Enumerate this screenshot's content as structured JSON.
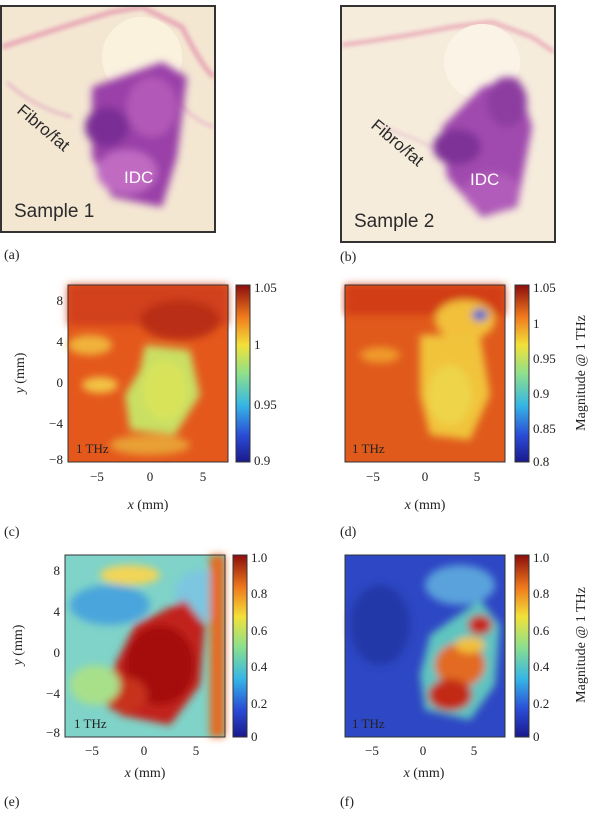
{
  "panels": {
    "a": {
      "letter": "(a)",
      "sample": "Sample 1",
      "label1": "Fibro/fat",
      "label2": "IDC"
    },
    "b": {
      "letter": "(b)",
      "sample": "Sample 2",
      "label1": "Fibro/fat",
      "label2": "IDC"
    },
    "c": {
      "letter": "(c)"
    },
    "d": {
      "letter": "(d)"
    },
    "e": {
      "letter": "(e)"
    },
    "f": {
      "letter": "(f)"
    }
  },
  "chart_data": [
    {
      "id": "c",
      "type": "heatmap",
      "inset": "1 THz",
      "xlabel_var": "x",
      "xlabel_unit": " (mm)",
      "ylabel_var": "y",
      "ylabel_unit": " (mm)",
      "xticks": [
        "−5",
        "0",
        "5"
      ],
      "yticks": [
        "8",
        "4",
        "0",
        "−4",
        "−8"
      ],
      "colorbar": {
        "ticks": [
          "1.05",
          "1",
          "0.95",
          "0.9"
        ],
        "range": [
          0.9,
          1.05
        ],
        "label": ""
      }
    },
    {
      "id": "d",
      "type": "heatmap",
      "inset": "1 THz",
      "xlabel_var": "x",
      "xlabel_unit": " (mm)",
      "xticks": [
        "−5",
        "0",
        "5"
      ],
      "colorbar": {
        "ticks": [
          "1.05",
          "1",
          "0.95",
          "0.9",
          "0.85",
          "0.8"
        ],
        "range": [
          0.8,
          1.05
        ],
        "label": "Magnitude @ 1 THz"
      }
    },
    {
      "id": "e",
      "type": "heatmap",
      "inset": "1 THz",
      "xlabel_var": "x",
      "xlabel_unit": " (mm)",
      "ylabel_var": "y",
      "ylabel_unit": " (mm)",
      "xticks": [
        "−5",
        "0",
        "5"
      ],
      "yticks": [
        "8",
        "4",
        "0",
        "−4",
        "−8"
      ],
      "colorbar": {
        "ticks": [
          "1.0",
          "0.8",
          "0.6",
          "0.4",
          "0.2",
          "0"
        ],
        "range": [
          0,
          1
        ],
        "label": ""
      }
    },
    {
      "id": "f",
      "type": "heatmap",
      "inset": "1 THz",
      "xlabel_var": "x",
      "xlabel_unit": " (mm)",
      "xticks": [
        "−5",
        "0",
        "5"
      ],
      "colorbar": {
        "ticks": [
          "1.0",
          "0.8",
          "0.6",
          "0.4",
          "0.2",
          "0"
        ],
        "range": [
          0,
          1
        ],
        "label": "Magnitude @ 1 THz"
      }
    }
  ]
}
